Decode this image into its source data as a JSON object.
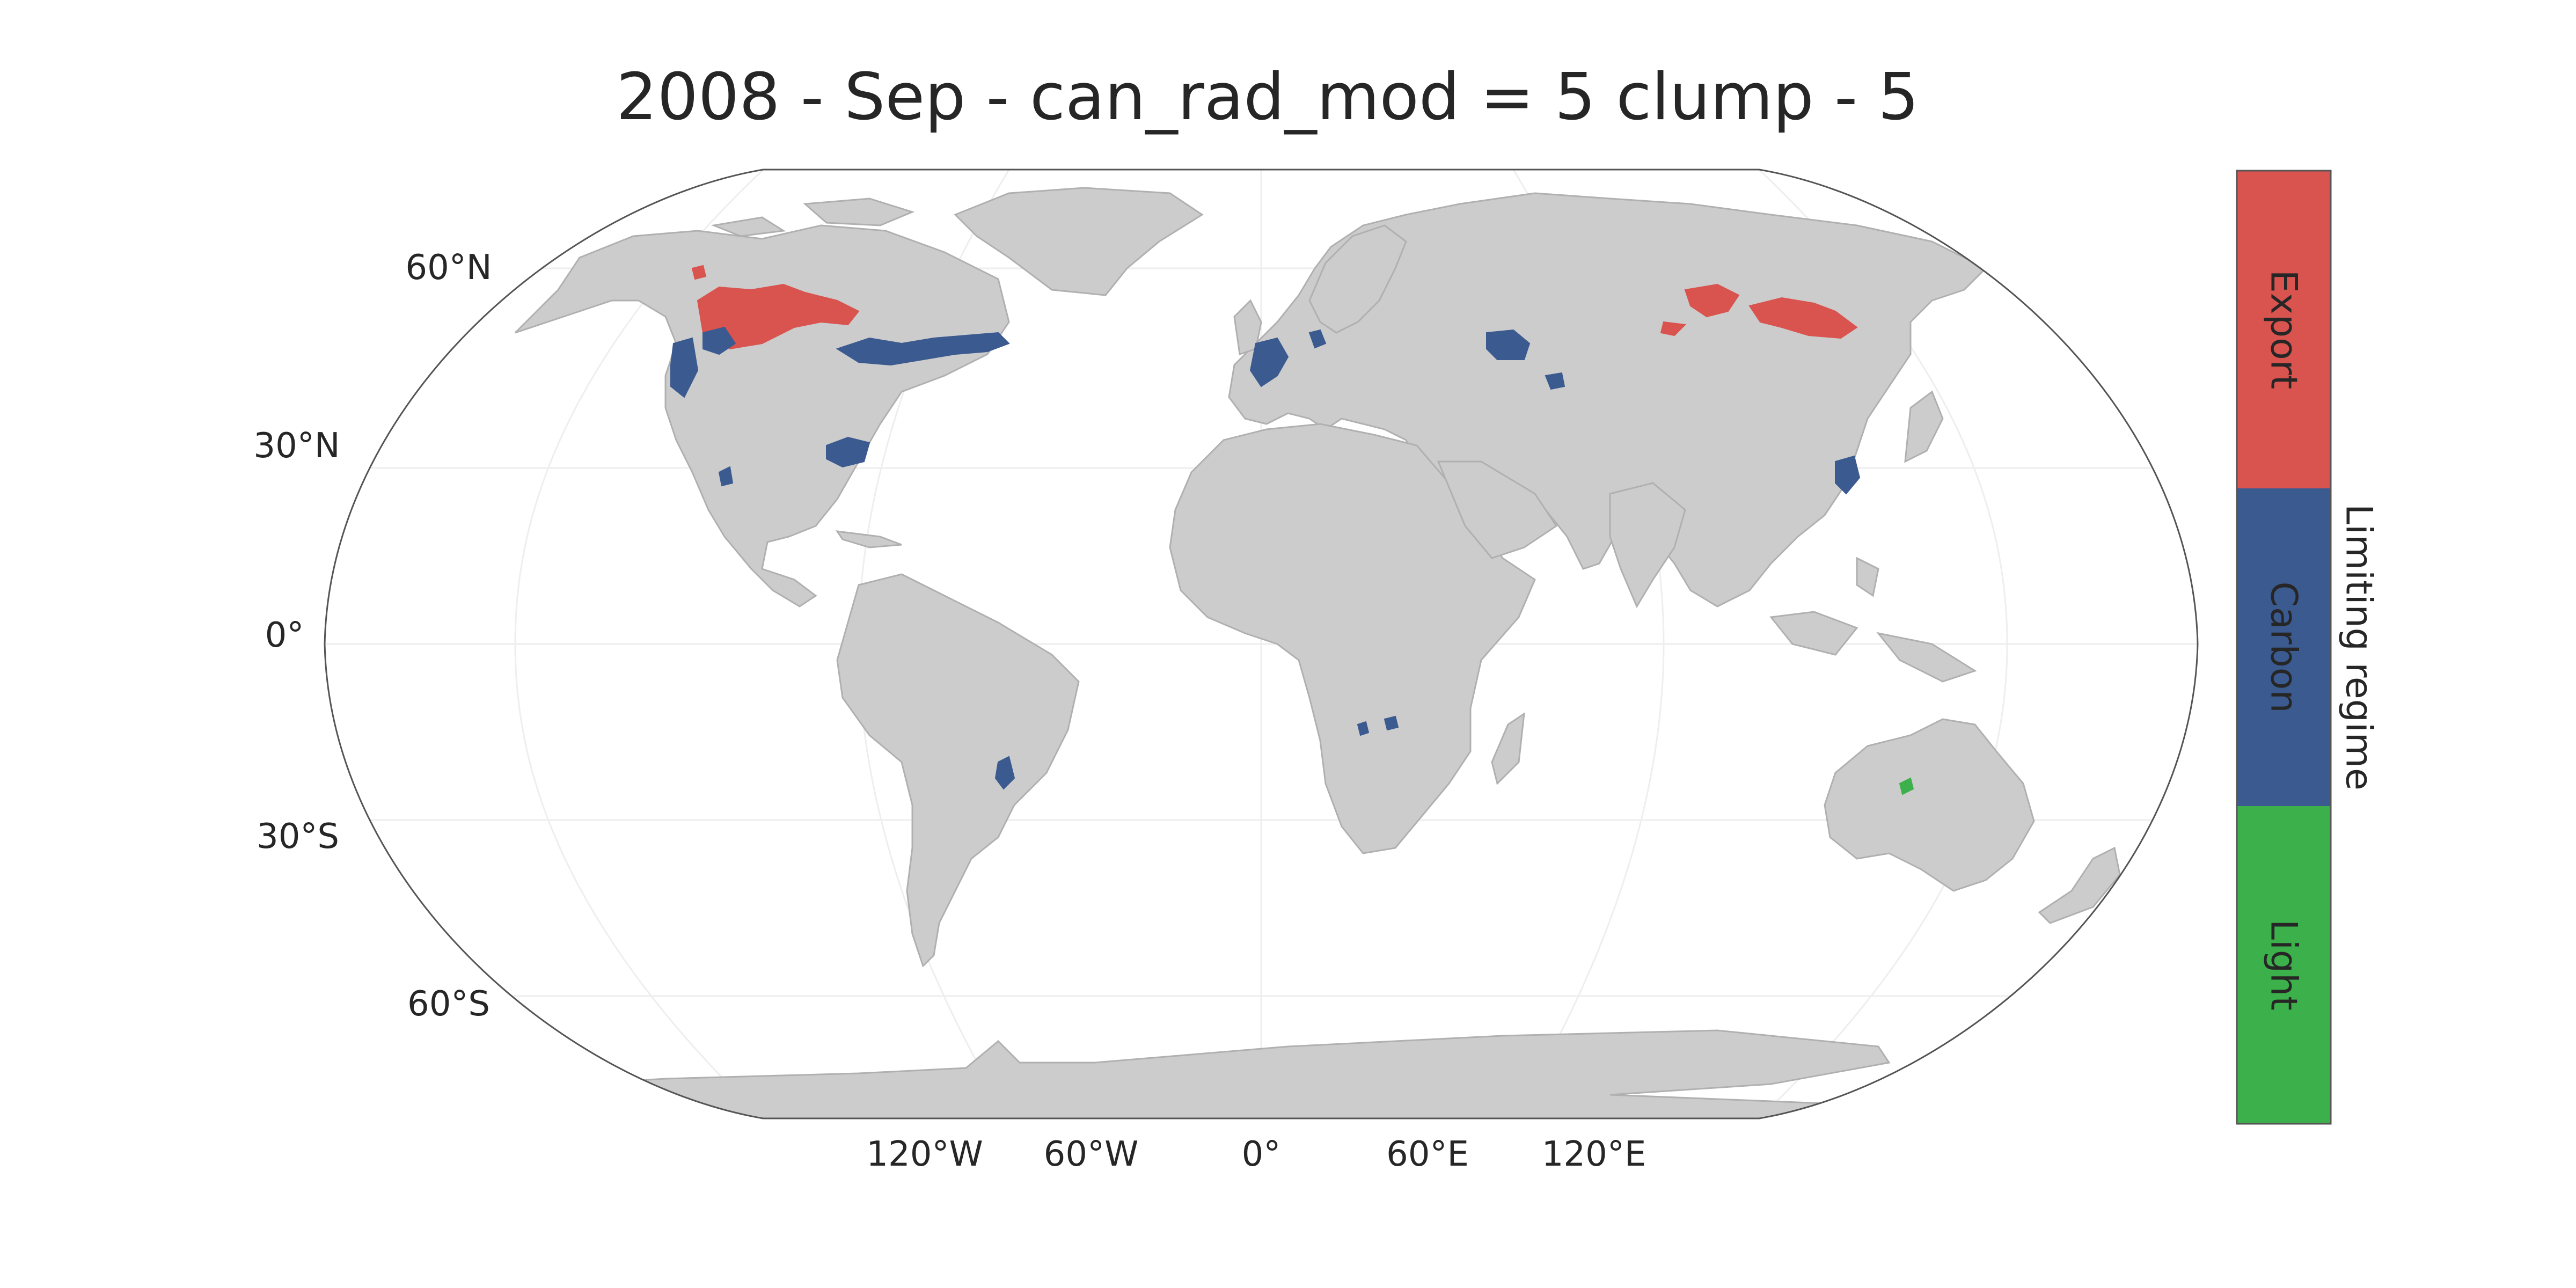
{
  "title": "2008 - Sep - can_rad_mod = 5 clump - 5",
  "map": {
    "projection": "Robinson",
    "ocean_color": "#ffffff",
    "land_color": "#cccccc",
    "border_color": "#b0b0b0",
    "outline_color": "#555555",
    "gridline_color": "#eeeeee",
    "lat_ticks": [
      "60°N",
      "30°N",
      "0°",
      "30°S",
      "60°S"
    ],
    "lon_ticks": [
      "120°W",
      "60°W",
      "0°",
      "60°E",
      "120°E"
    ]
  },
  "colorbar": {
    "title": "Limiting regime",
    "categories": [
      {
        "label": "Export",
        "color": "#d9534f"
      },
      {
        "label": "Carbon",
        "color": "#3b5a8f"
      },
      {
        "label": "Light",
        "color": "#3cb04a"
      }
    ]
  },
  "regime_regions": [
    {
      "regime": "Export",
      "area": "western Canada"
    },
    {
      "regime": "Export",
      "area": "central Siberia"
    },
    {
      "regime": "Carbon",
      "area": "eastern Canada / Great Lakes"
    },
    {
      "regime": "Carbon",
      "area": "Pacific Northwest"
    },
    {
      "regime": "Carbon",
      "area": "southeastern United States"
    },
    {
      "regime": "Carbon",
      "area": "western Europe"
    },
    {
      "regime": "Carbon",
      "area": "Caucasus / central Asia"
    },
    {
      "regime": "Carbon",
      "area": "eastern China"
    },
    {
      "regime": "Carbon",
      "area": "southern Brazil"
    },
    {
      "regime": "Carbon",
      "area": "southern Africa"
    },
    {
      "regime": "Light",
      "area": "central Australia"
    }
  ]
}
